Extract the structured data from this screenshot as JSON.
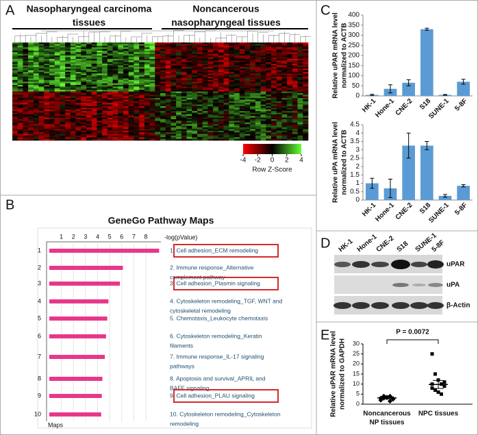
{
  "panel_labels": [
    "A",
    "B",
    "C",
    "D",
    "E"
  ],
  "chart_data": [
    {
      "type": "heatmap",
      "group_labels": [
        [
          "Nasopharyngeal carcinoma",
          "tissues"
        ],
        [
          "Noncancerous",
          "nasopharyngeal tissues"
        ]
      ],
      "colorbar_lim": [
        -4,
        4
      ],
      "colorbar_ticks": [
        -4,
        -2,
        0,
        2,
        4
      ],
      "colorbar_label": "Row Z-Score"
    },
    {
      "type": "hbar",
      "title": "GeneGo Pathway Maps",
      "xlabel": "-log(pValue)",
      "ylabel": "Maps",
      "categories": [
        "1",
        "2",
        "3",
        "4",
        "5",
        "6",
        "7",
        "8",
        "9",
        "10"
      ],
      "values": [
        9.1,
        6.1,
        5.85,
        4.9,
        4.8,
        4.7,
        4.6,
        4.4,
        4.35,
        4.3
      ],
      "color": "#e8378a",
      "xlim": [
        0,
        9.25
      ],
      "xticks": [
        1,
        2,
        3,
        4,
        5,
        6,
        7,
        8
      ],
      "pathways": [
        {
          "lines": [
            "1. Cell adhesion_ECM remodeling"
          ],
          "highlight": true
        },
        {
          "lines": [
            "2. Immune response_Alternative",
            "complement pathway"
          ],
          "highlight": false
        },
        {
          "lines": [
            "3. Cell adhesion_Plasmin signaling"
          ],
          "highlight": true
        },
        {
          "lines": [
            "4. Cytoskeleton remodeling_TGF, WNT and",
            "cytoskeletal remodeling"
          ],
          "highlight": false
        },
        {
          "lines": [
            "5. Chemotaxis_Leukocyte chemotaxis"
          ],
          "highlight": false
        },
        {
          "lines": [
            "6. Cytoskeleton remodeling_Keratin",
            "filaments"
          ],
          "highlight": false
        },
        {
          "lines": [
            "7. Immune response_IL-17 signaling",
            "pathways"
          ],
          "highlight": false
        },
        {
          "lines": [
            "8. Apoptosis and survival_APRIL and",
            "BAFF signaling"
          ],
          "highlight": false
        },
        {
          "lines": [
            "9. Cell adhesion_PLAU signaling"
          ],
          "highlight": true
        },
        {
          "lines": [
            "10. Cytoskeleton remodeling_Cytoskeleton",
            "remodeling"
          ],
          "highlight": false
        }
      ]
    },
    {
      "type": "bar",
      "ylabel": [
        "Relative uPAR mRNA level",
        "normalized to ACTB"
      ],
      "categories": [
        "HK-1",
        "Hone-1",
        "CNE-2",
        "S18",
        "SUNE-1",
        "5-8F"
      ],
      "values": [
        5,
        35,
        65,
        330,
        5,
        70
      ],
      "errors": [
        3,
        20,
        15,
        5,
        2,
        12
      ],
      "color": "#5b9bd5",
      "ylim": [
        0,
        400
      ],
      "yticks": [
        0,
        50,
        100,
        150,
        200,
        250,
        300,
        350,
        400
      ]
    },
    {
      "type": "bar",
      "ylabel": [
        "Relative uPA mRNA level",
        "normalized to ACTB"
      ],
      "categories": [
        "HK-1",
        "Hone-1",
        "CNE-2",
        "S18",
        "SUNE-1",
        "5-8F"
      ],
      "values": [
        1.0,
        0.7,
        3.25,
        3.25,
        0.25,
        0.85
      ],
      "errors": [
        0.3,
        0.55,
        0.75,
        0.25,
        0.08,
        0.07
      ],
      "color": "#5b9bd5",
      "ylim": [
        0,
        4.5
      ],
      "yticks": [
        0,
        0.5,
        1,
        1.5,
        2,
        2.5,
        3,
        3.5,
        4,
        4.5
      ]
    },
    {
      "type": "strip",
      "ylabel": [
        "Relative uPAR mRNA level",
        "normalized to GAPDH"
      ],
      "categories": [
        [
          "Noncancerous",
          "NP tissues"
        ],
        [
          "NPC tissues"
        ]
      ],
      "series": [
        {
          "values": [
            2,
            3,
            3.5,
            4,
            2.5,
            3,
            4,
            3.2,
            1.5,
            2.8
          ]
        },
        {
          "values": [
            25,
            15,
            12,
            10,
            9,
            8,
            7,
            6,
            5,
            11,
            10
          ]
        }
      ],
      "means": [
        3.1,
        9.8
      ],
      "sems": [
        0.5,
        2
      ],
      "annotation": "P = 0.0072",
      "color": "#000000",
      "ylim": [
        0,
        30
      ],
      "yticks": [
        0,
        5,
        10,
        15,
        20,
        25,
        30
      ]
    }
  ],
  "blot": {
    "lanes": [
      "HK-1",
      "Hone-1",
      "CNE-2",
      "S18",
      "SUNE-1",
      "5-8F"
    ],
    "rows": [
      "uPAR",
      "uPA",
      "β-Actin"
    ]
  }
}
